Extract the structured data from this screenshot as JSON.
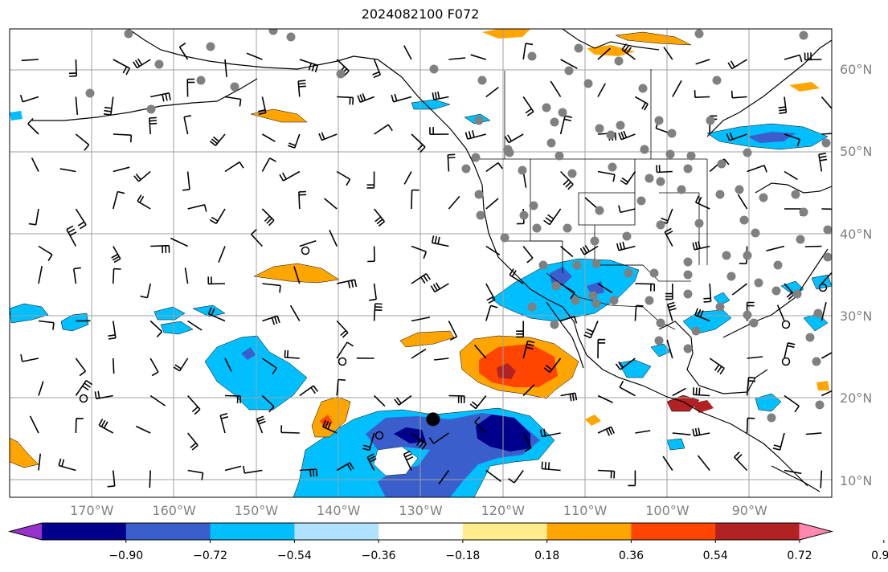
{
  "title": "2024082100 F072",
  "lat_labels": [
    {
      "text": "60°N",
      "lat": 60
    },
    {
      "text": "50°N",
      "lat": 50
    },
    {
      "text": "40°N",
      "lat": 40
    },
    {
      "text": "30°N",
      "lat": 30
    },
    {
      "text": "20°N",
      "lat": 20
    },
    {
      "text": "10°N",
      "lat": 10
    }
  ],
  "lon_labels": [
    {
      "text": "170°W",
      "lon": -170
    },
    {
      "text": "160°W",
      "lon": -160
    },
    {
      "text": "150°W",
      "lon": -150
    },
    {
      "text": "140°W",
      "lon": -140
    },
    {
      "text": "130°W",
      "lon": -130
    },
    {
      "text": "120°W",
      "lon": -120
    },
    {
      "text": "110°W",
      "lon": -110
    },
    {
      "text": "100°W",
      "lon": -100
    },
    {
      "text": "90°W",
      "lon": -90
    }
  ],
  "map_extent": {
    "lon": [
      -180,
      -80
    ],
    "lat": [
      8,
      65
    ]
  },
  "colorbar": {
    "ticks": [
      "−0.90",
      "−0.72",
      "−0.54",
      "−0.36",
      "−0.18",
      "0.18",
      "0.36",
      "0.54",
      "0.72",
      "0.90"
    ],
    "levels": [
      -0.9,
      -0.72,
      -0.54,
      -0.36,
      -0.18,
      0.18,
      0.36,
      0.54,
      0.72,
      0.9
    ],
    "colors": [
      "#9932cc",
      "#00008b",
      "#3a5fcd",
      "#00bfff",
      "#b0e2ff",
      "#ffffff",
      "#ffec8b",
      "#ffa500",
      "#ff4500",
      "#b22222",
      "#ff88b0"
    ]
  },
  "marker": {
    "lon": -128.5,
    "lat": 17.5,
    "color": "#000000"
  }
}
